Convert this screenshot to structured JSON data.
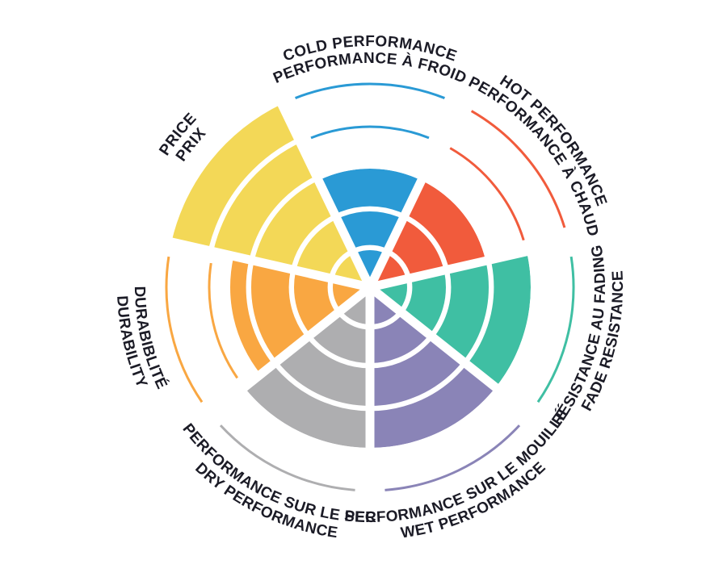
{
  "chart_data": {
    "type": "radial-sector-rating",
    "title": "",
    "levels": 5,
    "max": 5,
    "direction": "clockwise-from-top",
    "grid": "concentric-rings-with-radial-gaps",
    "legend_position": "labels-around-perimeter",
    "background": "#FFFFFF",
    "text_color": "#1B1B26",
    "sectors": [
      {
        "id": "cold-performance",
        "label_en": "COLD PERFORMANCE",
        "label_fr": "PERFORMANCE À FROID",
        "value": 3,
        "color": "#2A9AD5"
      },
      {
        "id": "hot-performance",
        "label_en": "HOT PERFORMANCE",
        "label_fr": "PERFORMANCE À CHAUD",
        "value": 3,
        "color": "#F15B3C"
      },
      {
        "id": "fade-resistance",
        "label_en": "FADE RESISTANCE",
        "label_fr": "RÉSISTANCE AU FADING",
        "value": 4,
        "color": "#3FBFA3"
      },
      {
        "id": "wet-performance",
        "label_en": "WET PERFORMANCE",
        "label_fr": "PERFORMANCE SUR LE MOUILLÉ",
        "value": 4,
        "color": "#8A84B7"
      },
      {
        "id": "dry-performance",
        "label_en": "DRY PERFORMANCE",
        "label_fr": "PERFORMANCE SUR LE SEC",
        "value": 4,
        "color": "#AEAEB0"
      },
      {
        "id": "durability",
        "label_en": "DURABILITY",
        "label_fr": "DURABIBLITÉ",
        "value": 3.5,
        "color": "#F9A742"
      },
      {
        "id": "price",
        "label_en": "PRICE",
        "label_fr": "PRIX",
        "value": 5,
        "color": "#F3D857"
      }
    ]
  }
}
